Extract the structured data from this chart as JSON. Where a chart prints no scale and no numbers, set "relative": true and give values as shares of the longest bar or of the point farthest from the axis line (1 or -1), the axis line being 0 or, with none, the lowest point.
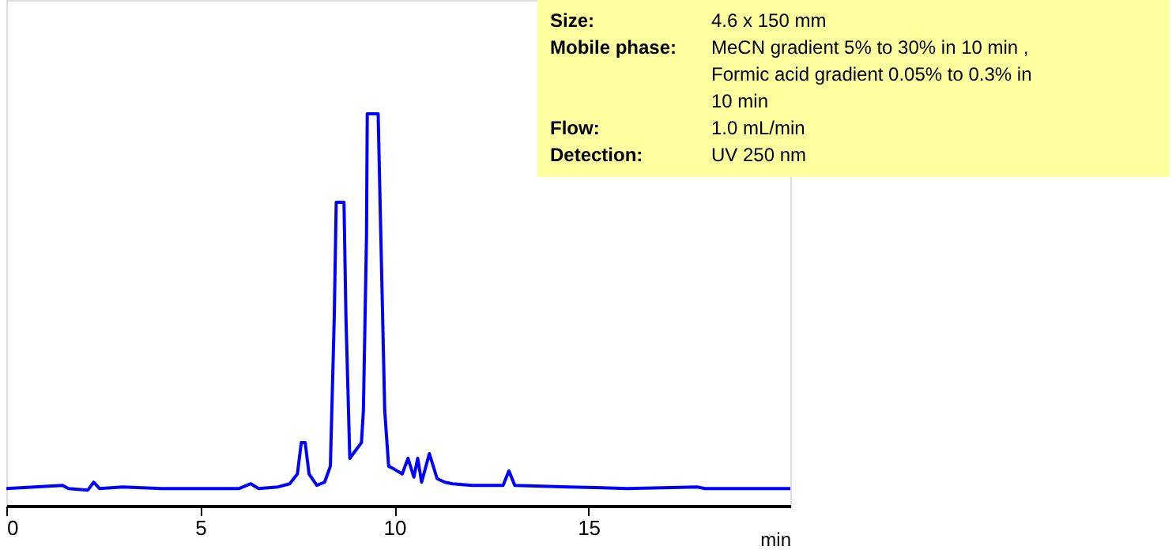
{
  "chart_data": {
    "type": "line",
    "relative": true,
    "xlabel": "min",
    "xlim": [
      0,
      20.2
    ],
    "xticks": [
      0,
      5,
      10,
      15
    ],
    "grid": false,
    "line_style": "solid",
    "marker": "none",
    "x": [
      0,
      1.45,
      1.6,
      2.1,
      2.25,
      2.4,
      3.0,
      4.0,
      6.0,
      6.3,
      6.5,
      7.0,
      7.3,
      7.5,
      7.6,
      7.7,
      7.8,
      8.0,
      8.2,
      8.35,
      8.45,
      8.5,
      8.7,
      8.75,
      8.85,
      9.0,
      9.15,
      9.2,
      9.28,
      9.3,
      9.58,
      9.65,
      9.75,
      9.85,
      10.0,
      10.2,
      10.35,
      10.5,
      10.6,
      10.7,
      10.9,
      11.1,
      11.3,
      11.5,
      12.0,
      12.8,
      12.95,
      13.1,
      14.5,
      16.0,
      17.8,
      18.0,
      20.2
    ],
    "series": [
      {
        "color": "#0000ff",
        "values": [
          0.044,
          0.052,
          0.044,
          0.04,
          0.06,
          0.044,
          0.048,
          0.044,
          0.044,
          0.056,
          0.044,
          0.048,
          0.056,
          0.081,
          0.161,
          0.161,
          0.081,
          0.052,
          0.06,
          0.101,
          0.484,
          0.774,
          0.774,
          0.484,
          0.121,
          0.141,
          0.161,
          0.242,
          0.685,
          1,
          1,
          0.685,
          0.242,
          0.101,
          0.093,
          0.081,
          0.121,
          0.073,
          0.121,
          0.06,
          0.133,
          0.069,
          0.06,
          0.056,
          0.052,
          0.052,
          0.089,
          0.052,
          0.048,
          0.044,
          0.048,
          0.044,
          0.044
        ]
      }
    ],
    "annotations": [
      "Size: 4.6 x 150 mm",
      "Mobile phase: MeCN gradient 5% to 30% in 10 min , Formic acid gradient 0.05% to 0.3% in 10 min",
      "Flow: 1.0 mL/min",
      "Detection: UV 250 nm"
    ]
  }
}
